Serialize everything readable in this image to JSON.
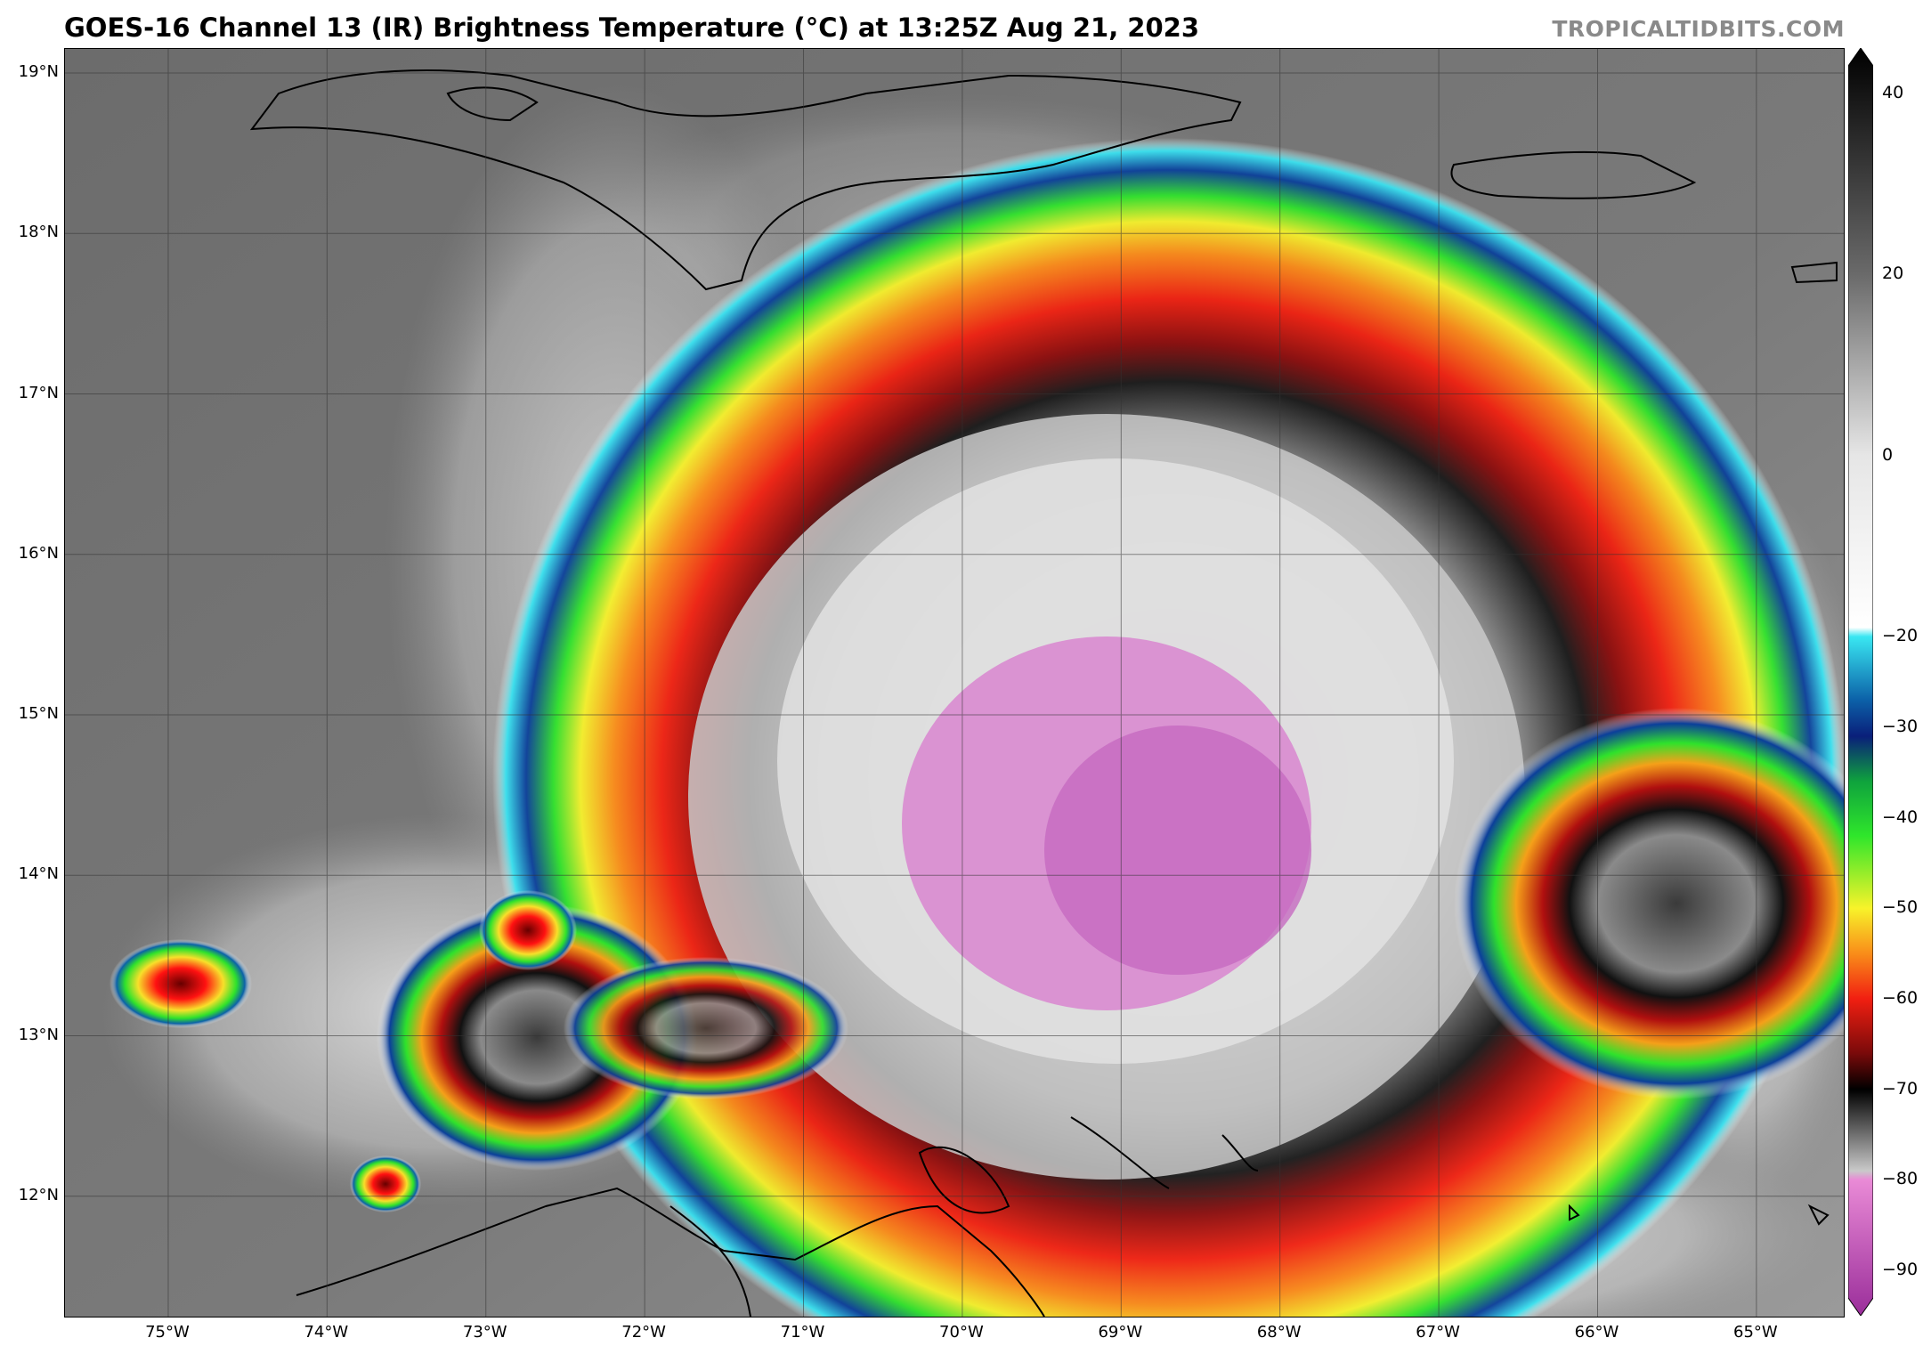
{
  "header": {
    "title": "GOES-16 Channel 13 (IR) Brightness Temperature (°C) at 13:25Z Aug 21, 2023",
    "brand": "TROPICALTIDBITS.COM"
  },
  "map": {
    "lat_labels": [
      "19°N",
      "18°N",
      "17°N",
      "16°N",
      "15°N",
      "14°N",
      "13°N",
      "12°N"
    ],
    "lon_labels": [
      "75°W",
      "74°W",
      "73°W",
      "72°W",
      "71°W",
      "70°W",
      "69°W",
      "68°W",
      "67°W",
      "66°W",
      "65°W"
    ],
    "lat_values": [
      19,
      18,
      17,
      16,
      15,
      14,
      13,
      12
    ],
    "lon_values": [
      -75,
      -74,
      -73,
      -72,
      -71,
      -70,
      -69,
      -68,
      -67,
      -66,
      -65
    ],
    "extent": {
      "lon_min": -75.65,
      "lon_max": -64.45,
      "lat_min": 11.25,
      "lat_max": 19.15
    },
    "storm_center": {
      "lon": -69.1,
      "lat": 14.6
    }
  },
  "colorbar": {
    "tick_labels": [
      "40",
      "20",
      "0",
      "−20",
      "−30",
      "−40",
      "−50",
      "−60",
      "−70",
      "−80",
      "−90"
    ],
    "tick_values": [
      40,
      20,
      0,
      -20,
      -30,
      -40,
      -50,
      -60,
      -70,
      -80,
      -90
    ],
    "range": [
      -95,
      45
    ],
    "stops": [
      {
        "v": 45,
        "c": "#000000"
      },
      {
        "v": 20,
        "c": "#6a6a6a"
      },
      {
        "v": 0,
        "c": "#e6e6e6"
      },
      {
        "v": -19,
        "c": "#ffffff"
      },
      {
        "v": -20,
        "c": "#39e7f2"
      },
      {
        "v": -27,
        "c": "#0c61a8"
      },
      {
        "v": -31,
        "c": "#0a1f7a"
      },
      {
        "v": -36,
        "c": "#0fa33d"
      },
      {
        "v": -42,
        "c": "#2fe62b"
      },
      {
        "v": -50,
        "c": "#f8f32a"
      },
      {
        "v": -55,
        "c": "#f98d19"
      },
      {
        "v": -60,
        "c": "#f11f11"
      },
      {
        "v": -66,
        "c": "#7a0a0a"
      },
      {
        "v": -70,
        "c": "#000000"
      },
      {
        "v": -79,
        "c": "#c9c9c9"
      },
      {
        "v": -80,
        "c": "#e98ad6"
      },
      {
        "v": -95,
        "c": "#9a2e9a"
      }
    ]
  }
}
